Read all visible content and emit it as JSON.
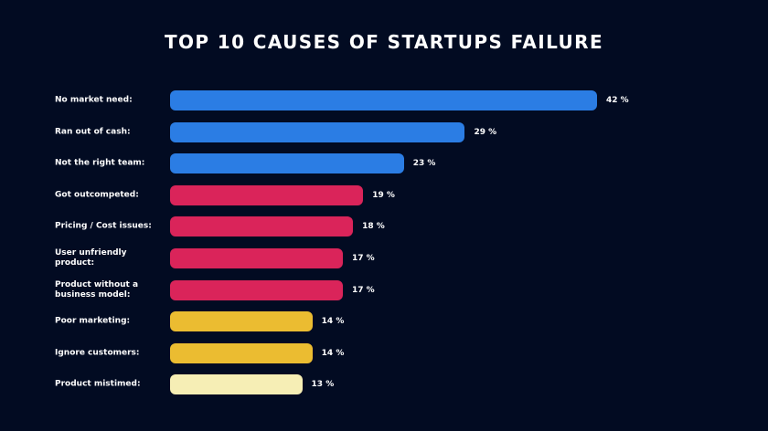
{
  "colors": {
    "background": "#020b22",
    "blue": "#2b7de4",
    "red": "#da245a",
    "yellow": "#ebbc31",
    "cream": "#f6eeb5"
  },
  "chart_data": {
    "type": "bar",
    "orientation": "horizontal",
    "title": "TOP 10 CAUSES OF STARTUPS FAILURE",
    "xlabel": "",
    "ylabel": "",
    "unit": "%",
    "grid": false,
    "xlim": [
      0,
      42
    ],
    "categories": [
      "No market need:",
      "Ran out of cash:",
      "Not the right team:",
      "Got outcompeted:",
      "Pricing / Cost issues:",
      "User unfriendly product:",
      "Product without a business model:",
      "Poor marketing:",
      "Ignore customers:",
      "Product mistimed:"
    ],
    "values": [
      42,
      29,
      23,
      19,
      18,
      17,
      17,
      14,
      14,
      13
    ],
    "value_labels": [
      "42 %",
      "29 %",
      "23 %",
      "19 %",
      "18 %",
      "17 %",
      "17 %",
      "14 %",
      "14 %",
      "13 %"
    ],
    "bar_colors": [
      "#2b7de4",
      "#2b7de4",
      "#2b7de4",
      "#da245a",
      "#da245a",
      "#da245a",
      "#da245a",
      "#ebbc31",
      "#ebbc31",
      "#f6eeb5"
    ]
  }
}
